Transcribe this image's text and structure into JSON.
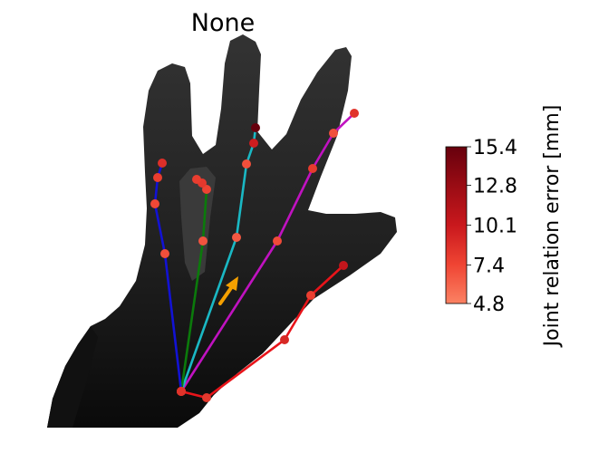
{
  "chart_data": {
    "type": "scatter",
    "title": "None",
    "colorbar": {
      "label": "Joint relation error [mm]",
      "ticks": [
        "15.4",
        "12.8",
        "10.1",
        "7.4",
        "4.8"
      ],
      "min": 4.8,
      "max": 15.4,
      "colors": [
        "#fb8263",
        "#ef4433",
        "#c9181d",
        "#9a0c14",
        "#67000d"
      ]
    },
    "colors": {
      "thumb": "#e8141a",
      "index": "#c012c0",
      "middle": "#1ab8c4",
      "ring": "#0b7a0b",
      "pinky": "#1212d4",
      "arrow": "#f5a000",
      "background": "#ffffff",
      "hand": "#2c2c2c"
    },
    "fingers": [
      {
        "name": "thumb",
        "errors": [
          8.5,
          8.2,
          9.1,
          7.8,
          10.5
        ]
      },
      {
        "name": "index",
        "errors": [
          8.5,
          7.2,
          8.0,
          6.9,
          8.4
        ]
      },
      {
        "name": "middle",
        "errors": [
          8.5,
          6.6,
          7.0,
          9.8,
          15.4
        ]
      },
      {
        "name": "ring",
        "errors": [
          8.5,
          6.8,
          7.5,
          8.2,
          7.9
        ]
      },
      {
        "name": "pinky",
        "errors": [
          8.5,
          7.0,
          7.3,
          7.9,
          8.7
        ]
      }
    ]
  }
}
